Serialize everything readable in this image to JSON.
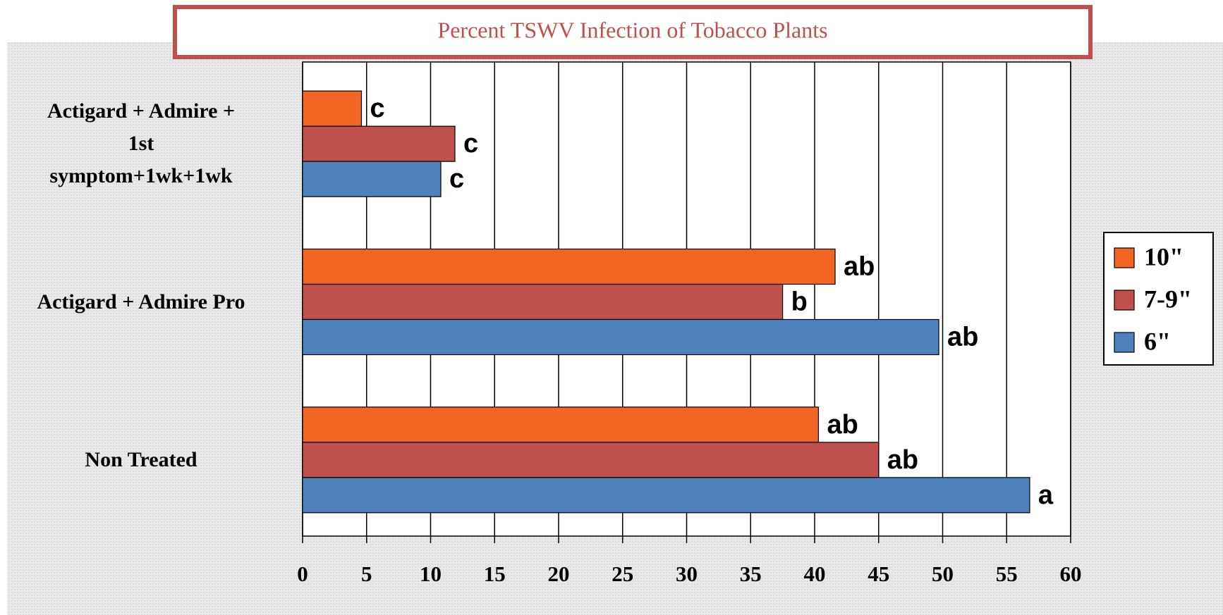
{
  "chart_data": {
    "type": "barh",
    "title": "Percent TSWV Infection of Tobacco Plants",
    "categories": [
      "Actigard + Admire +\n1st\nsymptom+1wk+1wk",
      "Actigard + Admire Pro",
      "Non Treated"
    ],
    "series": [
      {
        "name": "10\"",
        "color": "#f26522",
        "values": [
          4.6,
          41.6,
          40.3
        ],
        "labels": [
          "c",
          "ab",
          "ab"
        ]
      },
      {
        "name": "7-9\"",
        "color": "#c0504d",
        "values": [
          11.9,
          37.5,
          45.0
        ],
        "labels": [
          "c",
          "b",
          "ab"
        ]
      },
      {
        "name": "6\"",
        "color": "#4f81bd",
        "values": [
          10.8,
          49.7,
          56.8
        ],
        "labels": [
          "c",
          "ab",
          "a"
        ]
      }
    ],
    "xlim": [
      0,
      60
    ],
    "xticks": [
      0,
      5,
      10,
      15,
      20,
      25,
      30,
      35,
      40,
      45,
      50,
      55,
      60
    ],
    "grid": true,
    "legend": "right"
  }
}
